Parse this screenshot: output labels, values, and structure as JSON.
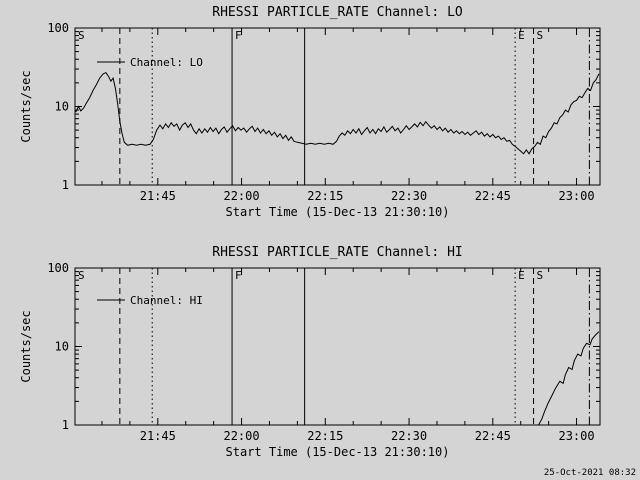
{
  "page": {
    "background": "#d4d4d4",
    "foreground": "#000000",
    "timestamp": "25-Oct-2021 08:32"
  },
  "chart_data": [
    {
      "id": "lo",
      "type": "line",
      "title": "RHESSI PARTICLE_RATE Channel: LO",
      "xlabel": "Start Time (15-Dec-13 21:30:10)",
      "ylabel": "Counts/sec",
      "yscale": "log",
      "ylim": [
        1,
        100
      ],
      "yticks": [
        {
          "v": 1,
          "label": "1"
        },
        {
          "v": 10,
          "label": "10"
        },
        {
          "v": 100,
          "label": "100"
        }
      ],
      "x_minutes_range": [
        30.17,
        124.2
      ],
      "x_minor_step_minutes": 5,
      "xticks": [
        {
          "m": 45,
          "label": "21:45"
        },
        {
          "m": 60,
          "label": "22:00"
        },
        {
          "m": 75,
          "label": "22:15"
        },
        {
          "m": 90,
          "label": "22:30"
        },
        {
          "m": 105,
          "label": "22:45"
        },
        {
          "m": 120,
          "label": "23:00"
        }
      ],
      "legend": {
        "label": "Channel: LO"
      },
      "corner_label": "S",
      "event_lines": [
        {
          "m": 38.2,
          "style": "dashed",
          "label": ""
        },
        {
          "m": 44.0,
          "style": "dotted",
          "label": ""
        },
        {
          "m": 58.3,
          "style": "solid",
          "label": "F"
        },
        {
          "m": 71.3,
          "style": "solid",
          "label": ""
        },
        {
          "m": 109.0,
          "style": "dotted",
          "label": "E"
        },
        {
          "m": 112.3,
          "style": "dashed",
          "label": "S"
        },
        {
          "m": 122.3,
          "style": "dashdot",
          "label": ""
        }
      ],
      "series": [
        {
          "name": "Channel: LO",
          "points": [
            [
              30.3,
              8.5
            ],
            [
              30.8,
              10
            ],
            [
              31.2,
              8.8
            ],
            [
              31.7,
              9.5
            ],
            [
              32.2,
              11
            ],
            [
              32.8,
              13
            ],
            [
              33.4,
              16
            ],
            [
              34.0,
              19
            ],
            [
              34.6,
              23
            ],
            [
              35.2,
              26
            ],
            [
              35.7,
              27
            ],
            [
              36.2,
              24
            ],
            [
              36.6,
              21
            ],
            [
              37.0,
              23
            ],
            [
              37.4,
              17
            ],
            [
              37.8,
              11
            ],
            [
              38.2,
              6.5
            ],
            [
              38.6,
              4.5
            ],
            [
              39.0,
              3.5
            ],
            [
              39.6,
              3.2
            ],
            [
              40.4,
              3.3
            ],
            [
              41.2,
              3.2
            ],
            [
              42.0,
              3.3
            ],
            [
              42.8,
              3.2
            ],
            [
              43.6,
              3.3
            ],
            [
              44.2,
              3.8
            ],
            [
              44.8,
              5.0
            ],
            [
              45.4,
              5.8
            ],
            [
              45.9,
              5.2
            ],
            [
              46.4,
              6.0
            ],
            [
              46.9,
              5.4
            ],
            [
              47.4,
              6.2
            ],
            [
              47.9,
              5.6
            ],
            [
              48.4,
              6.0
            ],
            [
              48.9,
              5.0
            ],
            [
              49.4,
              5.8
            ],
            [
              49.9,
              6.2
            ],
            [
              50.4,
              5.4
            ],
            [
              50.9,
              6.0
            ],
            [
              51.4,
              5.0
            ],
            [
              51.9,
              4.5
            ],
            [
              52.4,
              5.2
            ],
            [
              52.9,
              4.6
            ],
            [
              53.4,
              5.2
            ],
            [
              53.9,
              4.7
            ],
            [
              54.4,
              5.4
            ],
            [
              54.9,
              4.8
            ],
            [
              55.4,
              5.3
            ],
            [
              55.9,
              4.5
            ],
            [
              56.4,
              5.1
            ],
            [
              56.9,
              5.5
            ],
            [
              57.4,
              4.7
            ],
            [
              57.9,
              5.2
            ],
            [
              58.4,
              5.7
            ],
            [
              58.9,
              4.9
            ],
            [
              59.4,
              5.4
            ],
            [
              59.9,
              5.0
            ],
            [
              60.4,
              5.3
            ],
            [
              60.9,
              4.7
            ],
            [
              61.4,
              5.2
            ],
            [
              61.9,
              5.6
            ],
            [
              62.4,
              4.8
            ],
            [
              62.9,
              5.3
            ],
            [
              63.4,
              4.6
            ],
            [
              63.9,
              5.1
            ],
            [
              64.4,
              4.5
            ],
            [
              64.9,
              4.9
            ],
            [
              65.4,
              4.3
            ],
            [
              65.9,
              4.7
            ],
            [
              66.4,
              4.1
            ],
            [
              66.9,
              4.5
            ],
            [
              67.4,
              3.9
            ],
            [
              67.9,
              4.3
            ],
            [
              68.4,
              3.7
            ],
            [
              68.9,
              4.1
            ],
            [
              69.4,
              3.6
            ],
            [
              70.0,
              3.5
            ],
            [
              70.8,
              3.4
            ],
            [
              71.6,
              3.3
            ],
            [
              72.4,
              3.4
            ],
            [
              73.2,
              3.3
            ],
            [
              74.0,
              3.4
            ],
            [
              74.8,
              3.3
            ],
            [
              75.6,
              3.4
            ],
            [
              76.4,
              3.3
            ],
            [
              77.0,
              3.6
            ],
            [
              77.5,
              4.2
            ],
            [
              78.0,
              4.6
            ],
            [
              78.5,
              4.3
            ],
            [
              79.0,
              4.9
            ],
            [
              79.5,
              4.5
            ],
            [
              80.0,
              5.1
            ],
            [
              80.5,
              4.6
            ],
            [
              81.0,
              5.2
            ],
            [
              81.5,
              4.4
            ],
            [
              82.0,
              4.9
            ],
            [
              82.5,
              5.4
            ],
            [
              83.0,
              4.6
            ],
            [
              83.5,
              5.1
            ],
            [
              84.0,
              4.5
            ],
            [
              84.5,
              5.2
            ],
            [
              85.0,
              4.8
            ],
            [
              85.5,
              5.5
            ],
            [
              86.0,
              4.7
            ],
            [
              86.5,
              5.1
            ],
            [
              87.0,
              5.6
            ],
            [
              87.5,
              4.9
            ],
            [
              88.0,
              5.3
            ],
            [
              88.5,
              4.6
            ],
            [
              89.0,
              5.1
            ],
            [
              89.5,
              5.7
            ],
            [
              90.0,
              5.1
            ],
            [
              90.5,
              5.5
            ],
            [
              91.0,
              6.0
            ],
            [
              91.5,
              5.5
            ],
            [
              92.0,
              6.3
            ],
            [
              92.5,
              5.7
            ],
            [
              93.0,
              6.4
            ],
            [
              93.5,
              5.8
            ],
            [
              94.0,
              5.3
            ],
            [
              94.5,
              5.7
            ],
            [
              95.0,
              5.1
            ],
            [
              95.5,
              5.5
            ],
            [
              96.0,
              4.9
            ],
            [
              96.5,
              5.3
            ],
            [
              97.0,
              4.7
            ],
            [
              97.5,
              5.1
            ],
            [
              98.0,
              4.6
            ],
            [
              98.5,
              4.9
            ],
            [
              99.0,
              4.5
            ],
            [
              99.5,
              4.8
            ],
            [
              100.0,
              4.4
            ],
            [
              100.5,
              4.7
            ],
            [
              101.0,
              4.3
            ],
            [
              101.5,
              4.6
            ],
            [
              102.0,
              4.9
            ],
            [
              102.5,
              4.4
            ],
            [
              103.0,
              4.7
            ],
            [
              103.5,
              4.2
            ],
            [
              104.0,
              4.5
            ],
            [
              104.5,
              4.1
            ],
            [
              105.0,
              4.4
            ],
            [
              105.5,
              4.0
            ],
            [
              106.0,
              4.2
            ],
            [
              106.5,
              3.8
            ],
            [
              107.0,
              4.0
            ],
            [
              107.5,
              3.6
            ],
            [
              108.0,
              3.7
            ],
            [
              108.5,
              3.3
            ],
            [
              109.0,
              3.1
            ],
            [
              109.5,
              2.9
            ],
            [
              110.0,
              2.7
            ],
            [
              110.5,
              2.5
            ],
            [
              111.0,
              2.8
            ],
            [
              111.5,
              2.5
            ],
            [
              112.0,
              2.9
            ],
            [
              112.5,
              3.1
            ],
            [
              113.0,
              3.5
            ],
            [
              113.5,
              3.3
            ],
            [
              114.0,
              4.2
            ],
            [
              114.5,
              4.0
            ],
            [
              115.0,
              4.8
            ],
            [
              115.5,
              5.3
            ],
            [
              116.0,
              6.2
            ],
            [
              116.5,
              6.0
            ],
            [
              117.0,
              7.2
            ],
            [
              117.5,
              7.8
            ],
            [
              118.0,
              9.0
            ],
            [
              118.5,
              8.5
            ],
            [
              119.0,
              10.5
            ],
            [
              119.5,
              11.5
            ],
            [
              120.0,
              12.0
            ],
            [
              120.5,
              13.5
            ],
            [
              121.0,
              13.0
            ],
            [
              121.5,
              15.0
            ],
            [
              122.0,
              17.0
            ],
            [
              122.5,
              16.0
            ],
            [
              123.0,
              20.0
            ],
            [
              123.5,
              22.0
            ],
            [
              124.0,
              26.0
            ]
          ]
        }
      ]
    },
    {
      "id": "hi",
      "type": "line",
      "title": "RHESSI PARTICLE_RATE Channel: HI",
      "xlabel": "Start Time (15-Dec-13 21:30:10)",
      "ylabel": "Counts/sec",
      "yscale": "log",
      "ylim": [
        1,
        100
      ],
      "yticks": [
        {
          "v": 1,
          "label": "1"
        },
        {
          "v": 10,
          "label": "10"
        },
        {
          "v": 100,
          "label": "100"
        }
      ],
      "x_minutes_range": [
        30.17,
        124.2
      ],
      "x_minor_step_minutes": 5,
      "xticks": [
        {
          "m": 45,
          "label": "21:45"
        },
        {
          "m": 60,
          "label": "22:00"
        },
        {
          "m": 75,
          "label": "22:15"
        },
        {
          "m": 90,
          "label": "22:30"
        },
        {
          "m": 105,
          "label": "22:45"
        },
        {
          "m": 120,
          "label": "23:00"
        }
      ],
      "legend": {
        "label": "Channel: HI"
      },
      "corner_label": "S",
      "event_lines": [
        {
          "m": 38.2,
          "style": "dashed",
          "label": ""
        },
        {
          "m": 44.0,
          "style": "dotted",
          "label": ""
        },
        {
          "m": 58.3,
          "style": "solid",
          "label": "F"
        },
        {
          "m": 71.3,
          "style": "solid",
          "label": ""
        },
        {
          "m": 109.0,
          "style": "dotted",
          "label": "E"
        },
        {
          "m": 112.3,
          "style": "dashed",
          "label": "S"
        },
        {
          "m": 122.3,
          "style": "dashdot",
          "label": ""
        }
      ],
      "series": [
        {
          "name": "Channel: HI",
          "points": [
            [
              113.2,
              1.0
            ],
            [
              113.8,
              1.2
            ],
            [
              114.3,
              1.5
            ],
            [
              114.9,
              1.9
            ],
            [
              115.5,
              2.3
            ],
            [
              116.2,
              2.9
            ],
            [
              117.0,
              3.6
            ],
            [
              117.6,
              3.4
            ],
            [
              118.0,
              4.4
            ],
            [
              118.6,
              5.4
            ],
            [
              119.2,
              5.1
            ],
            [
              119.6,
              6.6
            ],
            [
              120.2,
              8.0
            ],
            [
              120.8,
              7.6
            ],
            [
              121.2,
              9.5
            ],
            [
              121.8,
              11.0
            ],
            [
              122.4,
              10.5
            ],
            [
              122.8,
              12.5
            ],
            [
              123.4,
              14.0
            ],
            [
              124.0,
              15.5
            ]
          ]
        }
      ]
    }
  ]
}
